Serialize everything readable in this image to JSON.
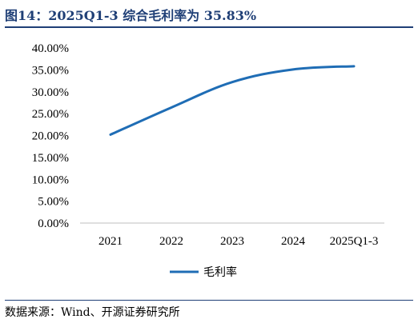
{
  "header": {
    "title": "图14：2025Q1-3 综合毛利率为 35.83%"
  },
  "footer": {
    "source": "数据来源：Wind、开源证券研究所"
  },
  "chart_data": {
    "type": "line",
    "title": "",
    "xlabel": "",
    "ylabel": "",
    "categories": [
      "2021",
      "2022",
      "2023",
      "2024",
      "2025Q1-3"
    ],
    "y_ticks": [
      "0.00%",
      "5.00%",
      "10.00%",
      "15.00%",
      "20.00%",
      "25.00%",
      "30.00%",
      "35.00%",
      "40.00%"
    ],
    "ylim": [
      0,
      40
    ],
    "grid": false,
    "legend": "bottom-center",
    "series": [
      {
        "name": "毛利率",
        "color": "#1f6db5",
        "values": [
          20.2,
          26.4,
          32.2,
          35.1,
          35.83
        ]
      }
    ]
  }
}
